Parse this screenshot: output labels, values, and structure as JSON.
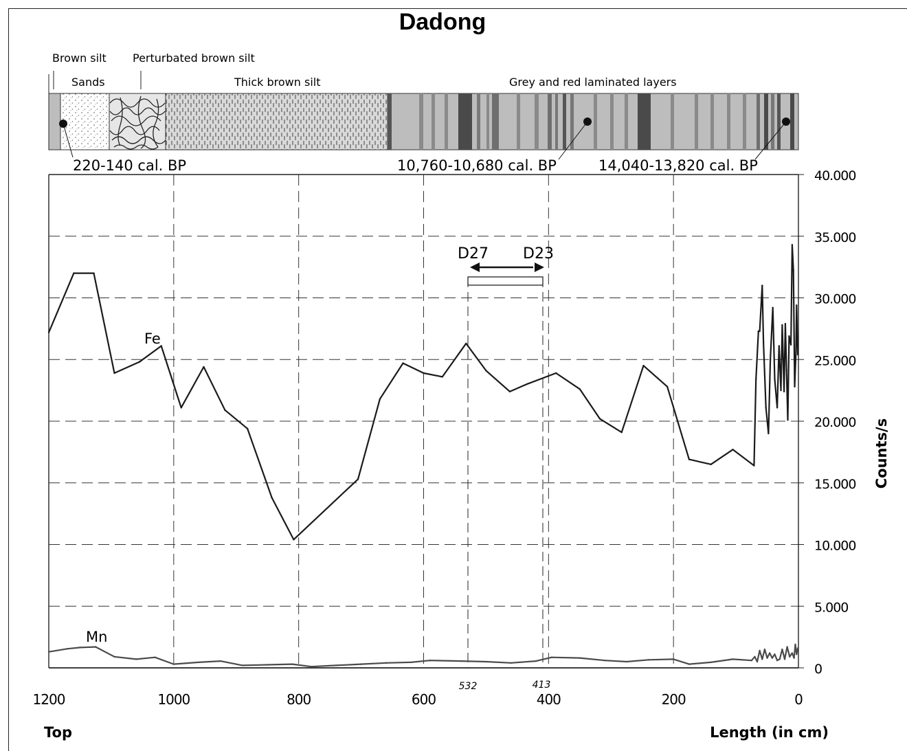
{
  "chart_data": {
    "type": "line",
    "title": "Dadong",
    "ylabel": "Counts/s",
    "xlabel": "Length (in cm)",
    "x_start_label": "Top",
    "xlim": [
      1200,
      0
    ],
    "ylim": [
      0,
      40000
    ],
    "grid": true,
    "x_ticks": [
      "1200",
      "1000",
      "800",
      "600",
      "400",
      "200",
      "0"
    ],
    "y_ticks": [
      "0",
      "5.000",
      "10.000",
      "15.000",
      "20.000",
      "25.000",
      "30.000",
      "35.000",
      "40.000"
    ],
    "layers": {
      "brown_silt": "Brown silt",
      "sands": "Sands",
      "perturbated": "Perturbated brown silt",
      "thick": "Thick brown silt",
      "laminated": "Grey and red laminated layers"
    },
    "dates": [
      {
        "label": "220-140 cal. BP",
        "depth": 1177
      },
      {
        "label": "10,760-10,680 cal. BP",
        "depth": 338
      },
      {
        "label": "14,040-13,820 cal. BP",
        "depth": 20
      }
    ],
    "sample_interval": {
      "from_label": "D27",
      "to_label": "D23",
      "start": 532,
      "end": 413,
      "start_label": "532",
      "end_label": "413"
    },
    "series": [
      {
        "name": "Fe",
        "color": "#1a1a1a",
        "points": [
          [
            1200,
            27200
          ],
          [
            1160,
            32000
          ],
          [
            1128,
            32000
          ],
          [
            1095,
            23900
          ],
          [
            1055,
            24800
          ],
          [
            1020,
            26100
          ],
          [
            988,
            21100
          ],
          [
            952,
            24400
          ],
          [
            918,
            20900
          ],
          [
            882,
            19400
          ],
          [
            843,
            13800
          ],
          [
            808,
            10400
          ],
          [
            705,
            15300
          ],
          [
            670,
            21800
          ],
          [
            633,
            24700
          ],
          [
            600,
            23900
          ],
          [
            570,
            23600
          ],
          [
            532,
            26300
          ],
          [
            500,
            24100
          ],
          [
            462,
            22400
          ],
          [
            435,
            23000
          ],
          [
            388,
            23900
          ],
          [
            350,
            22600
          ],
          [
            318,
            20200
          ],
          [
            283,
            19100
          ],
          [
            248,
            24500
          ],
          [
            210,
            22800
          ],
          [
            175,
            16900
          ],
          [
            140,
            16500
          ],
          [
            105,
            17700
          ],
          [
            71,
            16400
          ],
          [
            68,
            23400
          ],
          [
            64,
            27300
          ],
          [
            62,
            27300
          ],
          [
            58,
            31000
          ],
          [
            56,
            26400
          ],
          [
            52,
            21100
          ],
          [
            48,
            19000
          ],
          [
            45,
            25000
          ],
          [
            41,
            29200
          ],
          [
            38,
            23400
          ],
          [
            34,
            21100
          ],
          [
            31,
            26100
          ],
          [
            28,
            22500
          ],
          [
            26,
            27800
          ],
          [
            23,
            22400
          ],
          [
            21,
            27900
          ],
          [
            19,
            24100
          ],
          [
            17,
            20100
          ],
          [
            15,
            26900
          ],
          [
            12,
            26200
          ],
          [
            10,
            34300
          ],
          [
            8,
            32200
          ],
          [
            6,
            22800
          ],
          [
            4,
            25600
          ],
          [
            3,
            29400
          ],
          [
            2,
            27200
          ],
          [
            1,
            25400
          ]
        ]
      },
      {
        "name": "Mn",
        "color": "#4a4a4a",
        "points": [
          [
            1200,
            1300
          ],
          [
            1170,
            1550
          ],
          [
            1150,
            1650
          ],
          [
            1125,
            1700
          ],
          [
            1095,
            900
          ],
          [
            1060,
            700
          ],
          [
            1030,
            850
          ],
          [
            1000,
            300
          ],
          [
            960,
            450
          ],
          [
            925,
            550
          ],
          [
            890,
            200
          ],
          [
            850,
            250
          ],
          [
            810,
            300
          ],
          [
            780,
            100
          ],
          [
            740,
            200
          ],
          [
            700,
            300
          ],
          [
            660,
            400
          ],
          [
            620,
            450
          ],
          [
            590,
            600
          ],
          [
            540,
            550
          ],
          [
            500,
            500
          ],
          [
            460,
            400
          ],
          [
            420,
            550
          ],
          [
            395,
            850
          ],
          [
            350,
            800
          ],
          [
            310,
            600
          ],
          [
            275,
            500
          ],
          [
            240,
            650
          ],
          [
            200,
            700
          ],
          [
            175,
            300
          ],
          [
            140,
            450
          ],
          [
            105,
            700
          ],
          [
            75,
            600
          ],
          [
            70,
            900
          ],
          [
            66,
            500
          ],
          [
            62,
            1400
          ],
          [
            58,
            700
          ],
          [
            54,
            1500
          ],
          [
            50,
            800
          ],
          [
            46,
            1200
          ],
          [
            42,
            800
          ],
          [
            38,
            1100
          ],
          [
            34,
            600
          ],
          [
            30,
            700
          ],
          [
            26,
            1500
          ],
          [
            22,
            700
          ],
          [
            18,
            1700
          ],
          [
            14,
            900
          ],
          [
            10,
            1200
          ],
          [
            7,
            800
          ],
          [
            5,
            1900
          ],
          [
            3,
            1100
          ],
          [
            1,
            1600
          ]
        ]
      }
    ]
  }
}
